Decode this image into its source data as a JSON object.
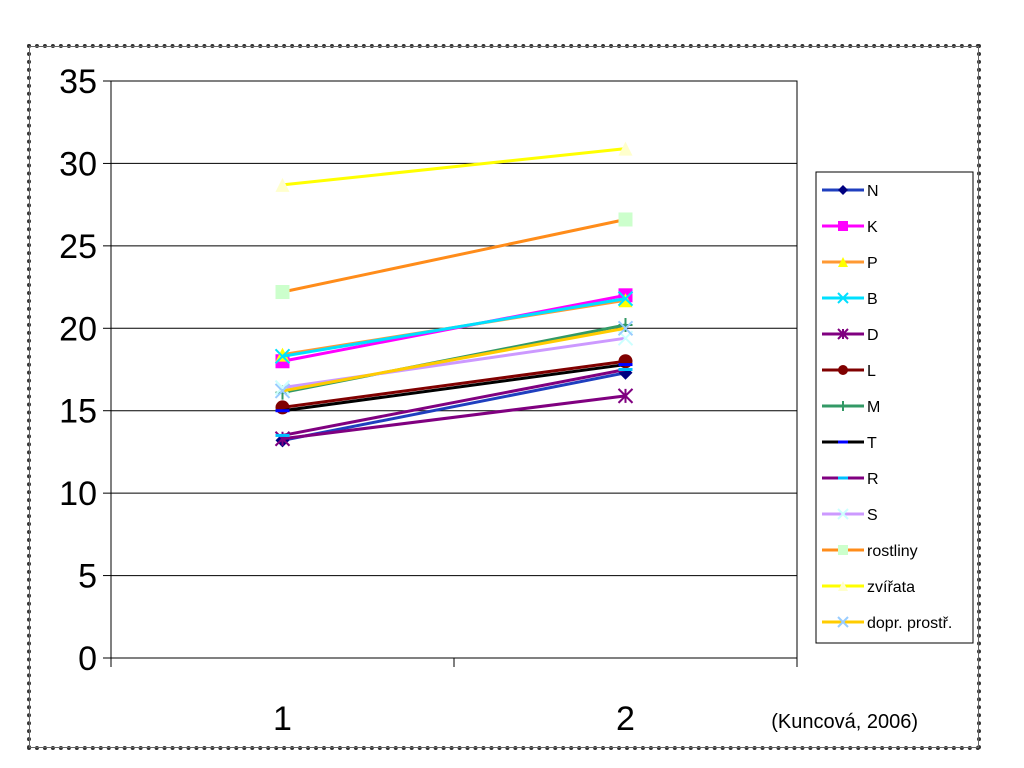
{
  "chart_data": {
    "type": "line",
    "title": "",
    "xlabel": "",
    "ylabel": "",
    "categories": [
      "1",
      "2"
    ],
    "ylim": [
      0,
      35
    ],
    "yticks": [
      "0",
      "5",
      "10",
      "15",
      "20",
      "25",
      "30",
      "35"
    ],
    "grid": true,
    "legend_position": "right",
    "source": "(Kuncová, 2006)",
    "series": [
      {
        "name": "N",
        "values": [
          13.2,
          17.3
        ],
        "color": "#1f3fbf",
        "marker": "diamond",
        "marker_color": "#000080"
      },
      {
        "name": "K",
        "values": [
          18.0,
          22.0
        ],
        "color": "#ff00ff",
        "marker": "square",
        "marker_color": "#ff00ff"
      },
      {
        "name": "P",
        "values": [
          18.4,
          21.7
        ],
        "color": "#ff9933",
        "marker": "triangle",
        "marker_color": "#ffff00"
      },
      {
        "name": "B",
        "values": [
          18.3,
          21.8
        ],
        "color": "#00e0ff",
        "marker": "x",
        "marker_color": "#00e0ff"
      },
      {
        "name": "D",
        "values": [
          13.3,
          15.9
        ],
        "color": "#800080",
        "marker": "star",
        "marker_color": "#800080"
      },
      {
        "name": "L",
        "values": [
          15.2,
          18.0
        ],
        "color": "#800000",
        "marker": "circle",
        "marker_color": "#800000"
      },
      {
        "name": "M",
        "values": [
          16.1,
          20.2
        ],
        "color": "#339966",
        "marker": "plus",
        "marker_color": "#339966"
      },
      {
        "name": "T",
        "values": [
          15.0,
          17.8
        ],
        "color": "#000000",
        "marker": "dash",
        "marker_color": "#0000ff"
      },
      {
        "name": "R",
        "values": [
          13.5,
          17.5
        ],
        "color": "#800080",
        "marker": "dash",
        "marker_color": "#00bfff"
      },
      {
        "name": "S",
        "values": [
          16.4,
          19.4
        ],
        "color": "#cc99ff",
        "marker": "x",
        "marker_color": "#ccffff"
      },
      {
        "name": "rostliny",
        "values": [
          22.2,
          26.6
        ],
        "color": "#ff8c1a",
        "marker": "square",
        "marker_color": "#ccffcc"
      },
      {
        "name": "zvířata",
        "values": [
          28.7,
          30.9
        ],
        "color": "#ffff00",
        "marker": "triangle",
        "marker_color": "#ffffcc"
      },
      {
        "name": "dopr. prostř.",
        "values": [
          16.2,
          20.0
        ],
        "color": "#ffcc00",
        "marker": "x",
        "marker_color": "#99ccff"
      }
    ]
  }
}
